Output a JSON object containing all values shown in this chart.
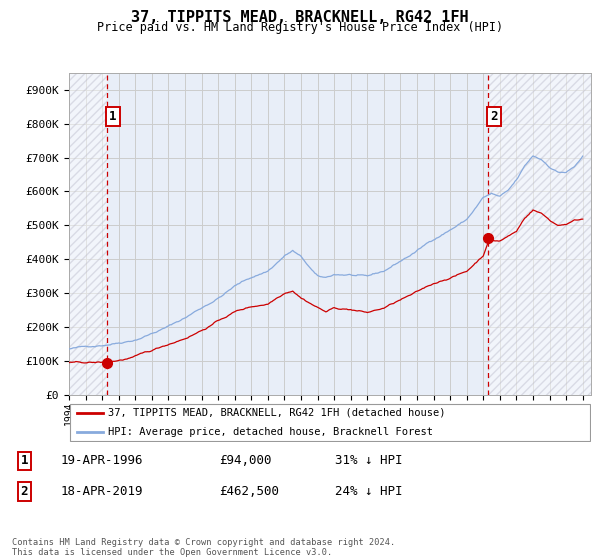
{
  "title": "37, TIPPITS MEAD, BRACKNELL, RG42 1FH",
  "subtitle": "Price paid vs. HM Land Registry's House Price Index (HPI)",
  "ylabel_ticks": [
    "£0",
    "£100K",
    "£200K",
    "£300K",
    "£400K",
    "£500K",
    "£600K",
    "£700K",
    "£800K",
    "£900K"
  ],
  "ytick_values": [
    0,
    100000,
    200000,
    300000,
    400000,
    500000,
    600000,
    700000,
    800000,
    900000
  ],
  "ylim": [
    0,
    950000
  ],
  "xlim_start": 1994.0,
  "xlim_end": 2025.5,
  "transaction1_x": 1996.29,
  "transaction1_y": 94000,
  "transaction2_x": 2019.29,
  "transaction2_y": 462500,
  "line_color_red": "#cc0000",
  "line_color_blue": "#88aadd",
  "dot_color": "#cc0000",
  "vline_color": "#cc0000",
  "grid_color": "#cccccc",
  "bg_plot": "#e8eef8",
  "legend_label_red": "37, TIPPITS MEAD, BRACKNELL, RG42 1FH (detached house)",
  "legend_label_blue": "HPI: Average price, detached house, Bracknell Forest",
  "transaction1_date": "19-APR-1996",
  "transaction1_price": "£94,000",
  "transaction1_hpi": "31% ↓ HPI",
  "transaction2_date": "18-APR-2019",
  "transaction2_price": "£462,500",
  "transaction2_hpi": "24% ↓ HPI",
  "footer": "Contains HM Land Registry data © Crown copyright and database right 2024.\nThis data is licensed under the Open Government Licence v3.0."
}
